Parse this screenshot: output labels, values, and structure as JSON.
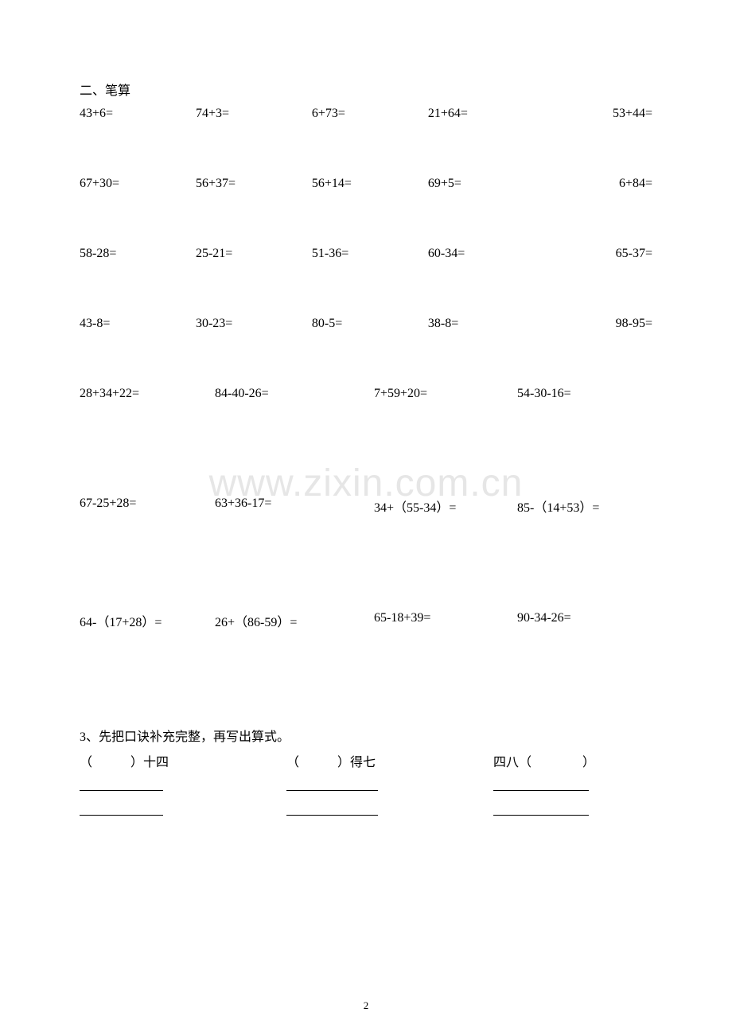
{
  "section_title": "二、笔算",
  "rows5": [
    [
      "43+6=",
      "74+3=",
      "6+73=",
      "21+64=",
      "53+44="
    ],
    [
      "67+30=",
      "56+37=",
      "56+14=",
      "69+5=",
      "6+84="
    ],
    [
      "58-28=",
      "25-21=",
      "51-36=",
      "60-34=",
      "65-37="
    ],
    [
      "43-8=",
      "30-23=",
      "80-5=",
      "38-8=",
      "98-95="
    ]
  ],
  "rows4a": [
    [
      "28+34+22=",
      "84-40-26=",
      "7+59+20=",
      "54-30-16="
    ]
  ],
  "rows4b": [
    [
      "67-25+28=",
      "63+36-17=",
      "34+（55-34）=",
      "85-（14+53）="
    ]
  ],
  "rows4c": [
    [
      "64-（17+28）=",
      "26+（86-59）=",
      "65-18+39=",
      "90-34-26="
    ]
  ],
  "watermark": "www.zixin.com.cn",
  "q3_title": "3、先把口诀补充完整，再写出算式。",
  "q3_items": [
    "（　　　）十四",
    "（　　　）得七",
    "四八（　　　　）"
  ],
  "page_number": "2"
}
